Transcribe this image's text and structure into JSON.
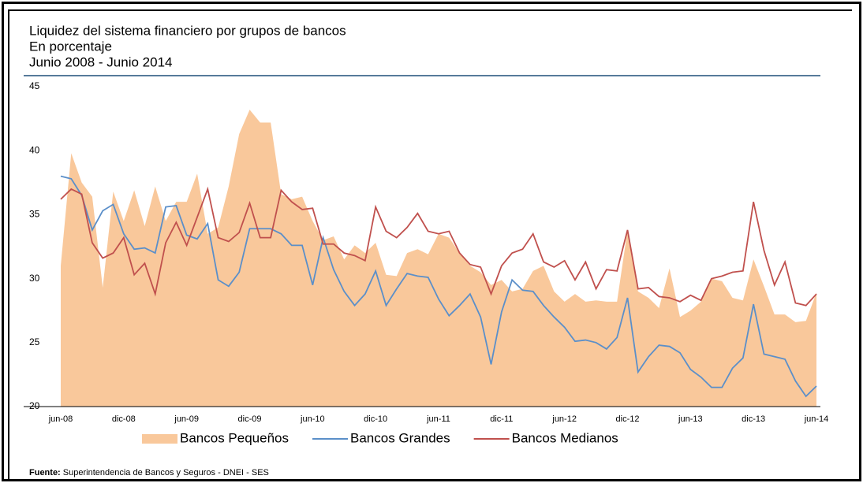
{
  "chart_data": {
    "type": "area_line",
    "title": "Liquidez del sistema financiero por grupos de bancos",
    "subtitle": "En porcentaje",
    "period": "Junio 2008 - Junio 2014",
    "source_label": "Fuente:",
    "source": "Superintendencia de Bancos y Seguros - DNEI - SES",
    "categories": [
      "jun-08",
      null,
      null,
      null,
      null,
      null,
      "dic-08",
      null,
      null,
      null,
      null,
      null,
      "jun-09",
      null,
      null,
      null,
      null,
      null,
      "dic-09",
      null,
      null,
      null,
      null,
      null,
      "jun-10",
      null,
      null,
      null,
      null,
      null,
      "dic-10",
      null,
      null,
      null,
      null,
      null,
      "jun-11",
      null,
      null,
      null,
      null,
      null,
      "dic-11",
      null,
      null,
      null,
      null,
      null,
      "jun-12",
      null,
      null,
      null,
      null,
      null,
      "dic-12",
      null,
      null,
      null,
      null,
      null,
      "jun-13",
      null,
      null,
      null,
      null,
      null,
      "dic-13",
      null,
      null,
      null,
      null,
      null,
      "jun-14"
    ],
    "series": [
      {
        "name": "Bancos Pequeños",
        "kind": "area",
        "color": "#f9c89b",
        "values": [
          31,
          39.8,
          37.5,
          36.4,
          29.3,
          36.8,
          34.5,
          36.9,
          34.1,
          37.2,
          34.5,
          36,
          36,
          38.2,
          33.5,
          34,
          37.2,
          41.3,
          43.2,
          42.2,
          42.2,
          36.6,
          36.2,
          36.4,
          34.5,
          33,
          33.3,
          31.5,
          32.6,
          32,
          32.8,
          30.3,
          30.2,
          32,
          32.3,
          31.9,
          33.5,
          33.2,
          32,
          31,
          30.5,
          29.5,
          29.9,
          29,
          29.2,
          30.6,
          31,
          29,
          28.2,
          28.8,
          28.2,
          28.3,
          28.2,
          28.2,
          33.8,
          29,
          28.5,
          27.7,
          30.8,
          27,
          27.5,
          28.2,
          30,
          29.8,
          28.5,
          28.3,
          31.5,
          29.4,
          27.2,
          27.2,
          26.6,
          26.7,
          28.9
        ]
      },
      {
        "name": "Bancos Grandes",
        "kind": "line",
        "color": "#5b8fc9",
        "values": [
          38,
          37.8,
          36.5,
          33.8,
          35.3,
          35.8,
          33.5,
          32.3,
          32.4,
          32,
          35.6,
          35.7,
          33.4,
          33.1,
          34.3,
          29.9,
          29.4,
          30.5,
          33.9,
          33.9,
          33.9,
          33.5,
          32.6,
          32.6,
          29.5,
          33.2,
          30.7,
          29,
          27.9,
          28.8,
          30.6,
          27.9,
          29.2,
          30.4,
          30.2,
          30.1,
          28.4,
          27.1,
          27.9,
          28.8,
          27,
          23.3,
          27.4,
          29.9,
          29.1,
          29,
          27.9,
          27,
          26.2,
          25.1,
          25.2,
          25,
          24.5,
          25.4,
          28.5,
          22.7,
          23.9,
          24.8,
          24.7,
          24.2,
          22.9,
          22.3,
          21.5,
          21.5,
          23,
          23.8,
          28,
          24.1,
          23.9,
          23.7,
          22,
          20.8,
          21.6
        ]
      },
      {
        "name": "Bancos Medianos",
        "kind": "line",
        "color": "#c0504d",
        "values": [
          36.2,
          37,
          36.6,
          32.8,
          31.6,
          32,
          33.2,
          30.3,
          31.2,
          28.8,
          32.8,
          34.4,
          32.6,
          34.8,
          37,
          33.2,
          32.9,
          33.6,
          35.9,
          33.2,
          33.2,
          36.9,
          36,
          35.4,
          35.5,
          32.7,
          32.7,
          32,
          31.8,
          31.4,
          35.6,
          33.7,
          33.2,
          34,
          35.1,
          33.7,
          33.5,
          33.7,
          32,
          31.1,
          30.9,
          28.8,
          31,
          32,
          32.3,
          33.5,
          31.3,
          30.9,
          31.4,
          29.9,
          31.3,
          29.2,
          30.7,
          30.6,
          33.8,
          29.2,
          29.3,
          28.6,
          28.5,
          28.2,
          28.7,
          28.3,
          30,
          30.2,
          30.5,
          30.6,
          36,
          32.2,
          29.5,
          31.3,
          28.1,
          27.9,
          28.8
        ]
      }
    ],
    "ylim": [
      20,
      45
    ],
    "yticks": [
      20,
      25,
      30,
      35,
      40,
      45
    ],
    "grid": false
  }
}
